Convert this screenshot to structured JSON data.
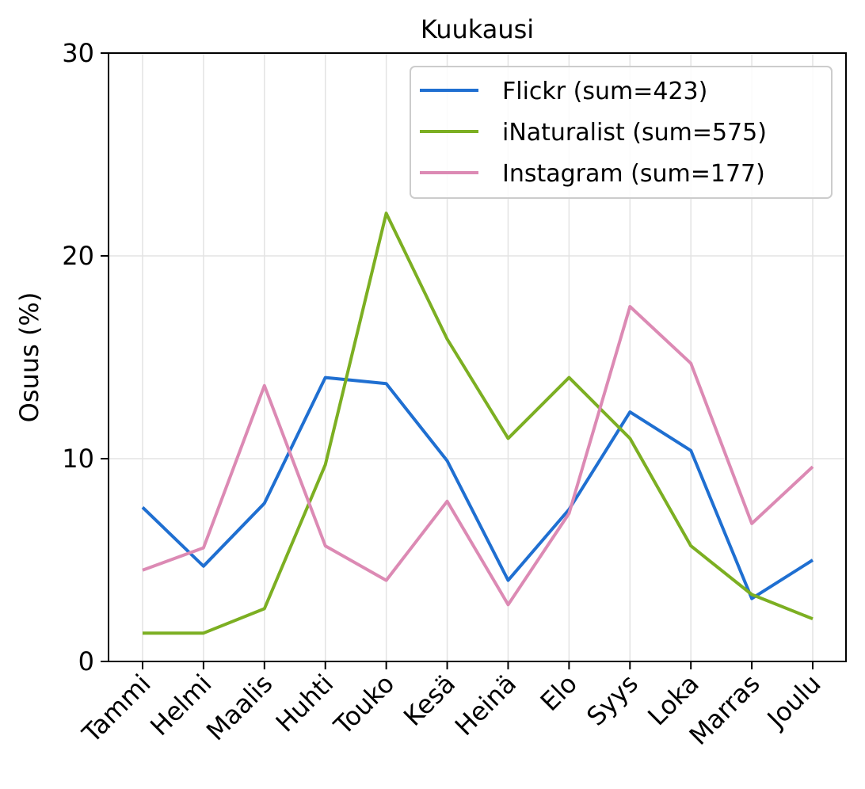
{
  "chart_data": {
    "type": "line",
    "title": "Kuukausi",
    "xlabel": "",
    "ylabel": "Osuus (%)",
    "ylim": [
      0,
      30
    ],
    "yticks": [
      0,
      10,
      20,
      30
    ],
    "grid": true,
    "legend_position": "top-right",
    "categories": [
      "Tammi",
      "Helmi",
      "Maalis",
      "Huhti",
      "Touko",
      "Kesä",
      "Heinä",
      "Elo",
      "Syys",
      "Loka",
      "Marras",
      "Joulu"
    ],
    "series": [
      {
        "name": "Flickr (sum=423)",
        "color": "#1f6fd1",
        "values": [
          7.6,
          4.7,
          7.8,
          14.0,
          13.7,
          9.9,
          4.0,
          7.5,
          12.3,
          10.4,
          3.1,
          5.0
        ]
      },
      {
        "name": "iNaturalist (sum=575)",
        "color": "#7caf22",
        "values": [
          1.4,
          1.4,
          2.6,
          9.7,
          22.1,
          15.9,
          11.0,
          14.0,
          11.0,
          5.7,
          3.3,
          2.1
        ]
      },
      {
        "name": "Instagram (sum=177)",
        "color": "#dc8ab4",
        "values": [
          4.5,
          5.6,
          13.6,
          5.7,
          4.0,
          7.9,
          2.8,
          7.3,
          17.5,
          14.7,
          6.8,
          9.6
        ]
      }
    ]
  }
}
